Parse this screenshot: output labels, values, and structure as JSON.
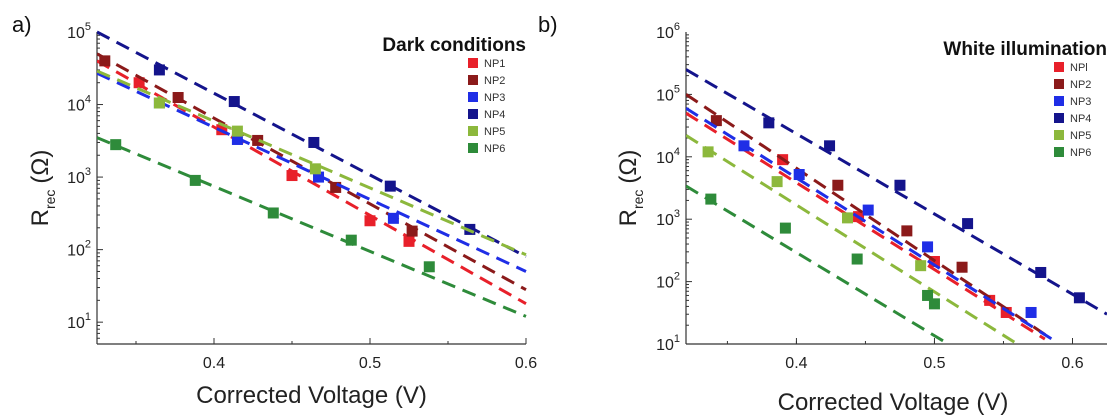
{
  "chart_data": [
    {
      "type": "scatter",
      "panel_label": "a)",
      "legend_title": "Dark conditions",
      "xlabel": "Corrected Voltage (V)",
      "ylabel": "R",
      "ylabel_sub": "rec",
      "ylabel_unit": "(Ω)",
      "xlim": [
        0.325,
        0.6
      ],
      "ylim": [
        5,
        100000
      ],
      "yscale": "log",
      "xticks": [
        "0.4",
        "0.5",
        "0.6"
      ],
      "yticks": [
        {
          "base": "10",
          "exp": "1",
          "v": 10
        },
        {
          "base": "10",
          "exp": "2",
          "v": 100
        },
        {
          "base": "10",
          "exp": "3",
          "v": 1000
        },
        {
          "base": "10",
          "exp": "4",
          "v": 10000
        },
        {
          "base": "10",
          "exp": "5",
          "v": 100000
        }
      ],
      "legend_position": "top-right",
      "series": [
        {
          "name": "NP1",
          "color": "#e8202a",
          "points": [
            [
              0.352,
              20000
            ],
            [
              0.405,
              4500
            ],
            [
              0.45,
              1050
            ],
            [
              0.5,
              250
            ],
            [
              0.525,
              130
            ]
          ],
          "fit": [
            [
              0.325,
              40000
            ],
            [
              0.6,
              18
            ]
          ]
        },
        {
          "name": "NP2",
          "color": "#8b1a1a",
          "points": [
            [
              0.33,
              40000
            ],
            [
              0.377,
              12500
            ],
            [
              0.428,
              3200
            ],
            [
              0.478,
              720
            ],
            [
              0.527,
              180
            ]
          ],
          "fit": [
            [
              0.325,
              50000
            ],
            [
              0.6,
              28
            ]
          ]
        },
        {
          "name": "NP3",
          "color": "#1f2ee6",
          "points": [
            [
              0.365,
              10500
            ],
            [
              0.415,
              3300
            ],
            [
              0.467,
              1000
            ],
            [
              0.515,
              270
            ]
          ],
          "fit": [
            [
              0.325,
              27000
            ],
            [
              0.6,
              50
            ]
          ]
        },
        {
          "name": "NP4",
          "color": "#14148c",
          "points": [
            [
              0.365,
              30000
            ],
            [
              0.413,
              11000
            ],
            [
              0.464,
              3000
            ],
            [
              0.513,
              750
            ],
            [
              0.564,
              190
            ]
          ],
          "fit": [
            [
              0.325,
              100000
            ],
            [
              0.6,
              80
            ]
          ]
        },
        {
          "name": "NP5",
          "color": "#8cb83c",
          "points": [
            [
              0.365,
              10500
            ],
            [
              0.415,
              4300
            ],
            [
              0.465,
              1300
            ]
          ],
          "fit": [
            [
              0.325,
              29000
            ],
            [
              0.6,
              85
            ]
          ]
        },
        {
          "name": "NP6",
          "color": "#2e8b3a",
          "points": [
            [
              0.337,
              2800
            ],
            [
              0.388,
              900
            ],
            [
              0.438,
              320
            ],
            [
              0.488,
              135
            ],
            [
              0.538,
              58
            ]
          ],
          "fit": [
            [
              0.325,
              3500
            ],
            [
              0.6,
              12
            ]
          ]
        }
      ]
    },
    {
      "type": "scatter",
      "panel_label": "b)",
      "legend_title": "White illumination",
      "xlabel": "Corrected Voltage (V)",
      "ylabel": "R",
      "ylabel_sub": "rec",
      "ylabel_unit": "(Ω)",
      "xlim": [
        0.32,
        0.625
      ],
      "ylim": [
        10,
        1000000
      ],
      "yscale": "log",
      "xticks": [
        "0.4",
        "0.5",
        "0.6"
      ],
      "yticks": [
        {
          "base": "10",
          "exp": "1",
          "v": 10
        },
        {
          "base": "10",
          "exp": "2",
          "v": 100
        },
        {
          "base": "10",
          "exp": "3",
          "v": 1000
        },
        {
          "base": "10",
          "exp": "4",
          "v": 10000
        },
        {
          "base": "10",
          "exp": "5",
          "v": 100000
        },
        {
          "base": "10",
          "exp": "6",
          "v": 1000000
        }
      ],
      "legend_position": "top-right",
      "series": [
        {
          "name": "NPl",
          "color": "#e8202a",
          "points": [
            [
              0.39,
              9000
            ],
            [
              0.445,
              1100
            ],
            [
              0.5,
              210
            ],
            [
              0.54,
              50
            ],
            [
              0.552,
              32
            ]
          ],
          "fit": [
            [
              0.32,
              50000
            ],
            [
              0.58,
              12
            ]
          ]
        },
        {
          "name": "NP2",
          "color": "#8b1a1a",
          "points": [
            [
              0.342,
              38000
            ],
            [
              0.43,
              3500
            ],
            [
              0.48,
              650
            ],
            [
              0.52,
              170
            ]
          ],
          "fit": [
            [
              0.32,
              100000
            ],
            [
              0.585,
              12
            ]
          ]
        },
        {
          "name": "NP3",
          "color": "#1f2ee6",
          "points": [
            [
              0.362,
              15000
            ],
            [
              0.402,
              5200
            ],
            [
              0.452,
              1400
            ],
            [
              0.495,
              360
            ],
            [
              0.57,
              32
            ]
          ],
          "fit": [
            [
              0.32,
              60000
            ],
            [
              0.585,
              12
            ]
          ]
        },
        {
          "name": "NP4",
          "color": "#14148c",
          "points": [
            [
              0.38,
              35000
            ],
            [
              0.424,
              15000
            ],
            [
              0.475,
              3500
            ],
            [
              0.524,
              850
            ],
            [
              0.577,
              140
            ],
            [
              0.605,
              55
            ]
          ],
          "fit": [
            [
              0.32,
              250000
            ],
            [
              0.625,
              30
            ]
          ]
        },
        {
          "name": "NP5",
          "color": "#8cb83c",
          "points": [
            [
              0.336,
              12000
            ],
            [
              0.386,
              4000
            ],
            [
              0.437,
              1050
            ],
            [
              0.49,
              180
            ]
          ],
          "fit": [
            [
              0.32,
              22000
            ],
            [
              0.56,
              10
            ]
          ]
        },
        {
          "name": "NP6",
          "color": "#2e8b3a",
          "points": [
            [
              0.338,
              2100
            ],
            [
              0.392,
              720
            ],
            [
              0.444,
              230
            ],
            [
              0.495,
              60
            ],
            [
              0.5,
              44
            ]
          ],
          "fit": [
            [
              0.32,
              3400
            ],
            [
              0.51,
              10
            ]
          ]
        }
      ]
    }
  ]
}
